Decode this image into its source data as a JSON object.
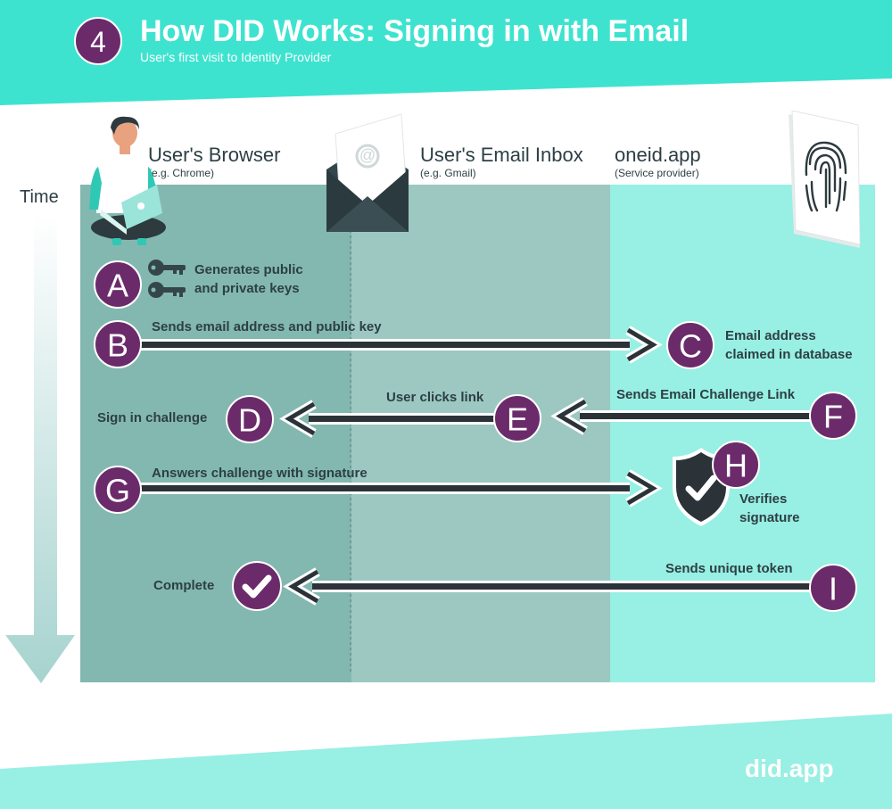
{
  "header": {
    "step_number": "4",
    "title": "How DID Works: Signing in with Email",
    "subtitle": "User's first visit to Identity Provider"
  },
  "time_label": "Time",
  "columns": [
    {
      "title": "User's Browser",
      "subtitle": "(e.g. Chrome)"
    },
    {
      "title": "User's Email Inbox",
      "subtitle": "(e.g. Gmail)"
    },
    {
      "title": "oneid.app",
      "subtitle": "(Service provider)"
    }
  ],
  "steps": {
    "a": {
      "letter": "A",
      "label_line1": "Generates public",
      "label_line2": "and private keys"
    },
    "b": {
      "letter": "B",
      "label": "Sends email address and public key"
    },
    "c": {
      "letter": "C",
      "label_line1": "Email address",
      "label_line2": "claimed in database"
    },
    "d": {
      "letter": "D",
      "label": "Sign in challenge"
    },
    "e": {
      "letter": "E",
      "label": "User clicks link"
    },
    "f": {
      "letter": "F",
      "label": "Sends Email Challenge Link"
    },
    "g": {
      "letter": "G",
      "label": "Answers challenge with signature"
    },
    "h": {
      "letter": "H",
      "label_line1": "Verifies",
      "label_line2": "signature"
    },
    "i": {
      "letter": "I",
      "label": "Sends unique token"
    },
    "complete": {
      "label": "Complete"
    }
  },
  "footer": {
    "brand": "did.app"
  },
  "icons": {
    "person": "person-with-laptop-icon",
    "envelope": "envelope-icon",
    "fingerprint": "fingerprint-card-icon",
    "keys": "key-icon",
    "shield": "shield-check-icon",
    "check": "checkmark-icon"
  },
  "colors": {
    "teal_header": "#3ee3d0",
    "browser_panel": "#83b8b0",
    "inbox_panel": "#9cc8c1",
    "service_panel": "#98efe3",
    "step_purple": "#6b2b6b",
    "arrow_dark": "#2b3338",
    "text_dark": "#2d3f45",
    "footer_teal": "#98efe3"
  }
}
